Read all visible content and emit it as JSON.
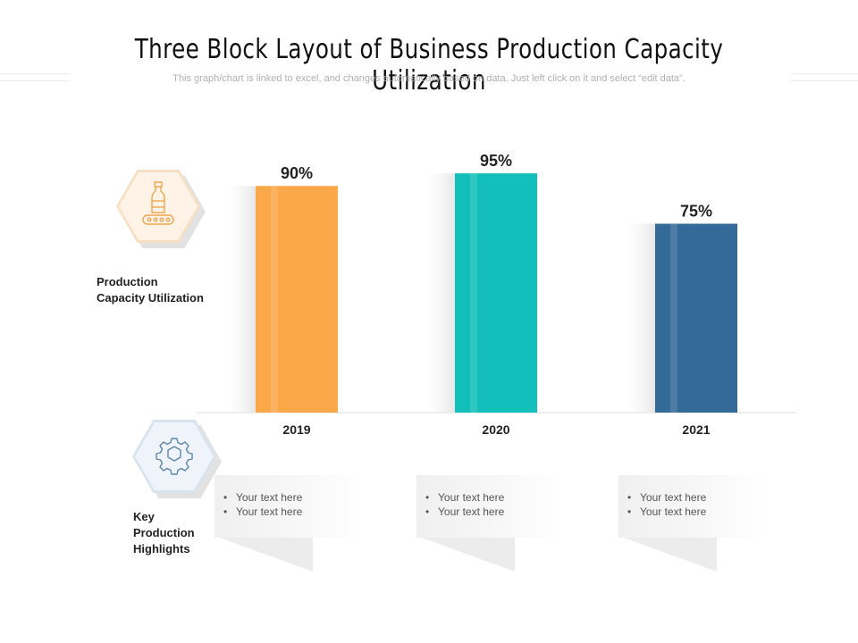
{
  "header": {
    "title": "Three Block Layout of Business Production Capacity Utilization",
    "subtitle": "This graph/chart is linked to excel, and changes automatically based on data. Just left click on it and select “edit data”."
  },
  "left_labels": {
    "top": [
      "Production",
      "Capacity Utilization"
    ],
    "bottom": [
      "Key",
      "Production",
      "Highlights"
    ]
  },
  "icons": {
    "top": "bottle-conveyor-icon",
    "bottom": "gear-icon"
  },
  "colors": {
    "bar_2019": "#FBA84A",
    "bar_2020": "#12BFBA",
    "bar_2021": "#336A97",
    "hex_top_border": "#F7DFC4",
    "hex_top_fill": "#FEF3E6",
    "hex_top_icon": "#F0A64E",
    "hex_bottom_border": "#D8E3ED",
    "hex_bottom_fill": "#EEF4FA",
    "hex_bottom_icon": "#5F86A9"
  },
  "chart_data": {
    "type": "bar",
    "categories": [
      "2019",
      "2020",
      "2021"
    ],
    "values": [
      90,
      95,
      75
    ],
    "data_labels": [
      "90%",
      "95%",
      "75%"
    ],
    "ylim": [
      0,
      100
    ],
    "grid": false,
    "legend": "none"
  },
  "text_blocks": [
    {
      "items": [
        "Your text here",
        "Your text here"
      ]
    },
    {
      "items": [
        "Your text here",
        "Your text here"
      ]
    },
    {
      "items": [
        "Your text here",
        "Your text here"
      ]
    }
  ]
}
